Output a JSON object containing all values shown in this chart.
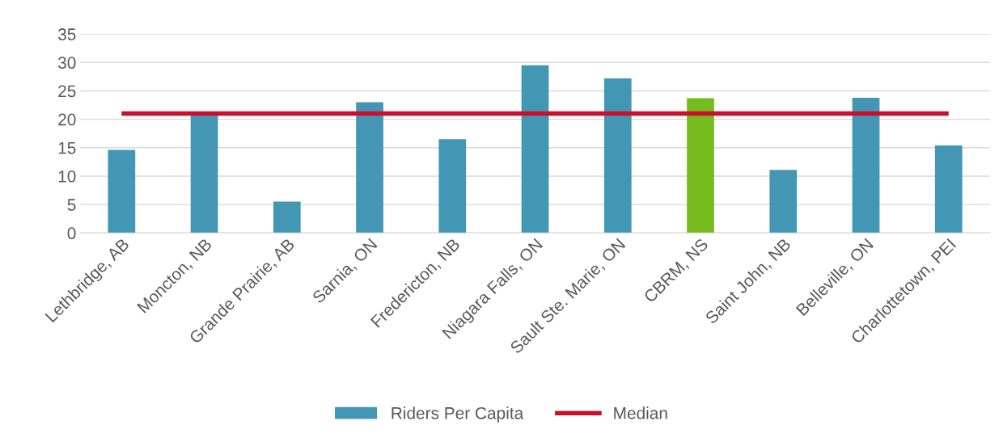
{
  "chart_data": {
    "type": "bar",
    "categories": [
      "Lethbridge, AB",
      "Moncton, NB",
      "Grande Prairie, AB",
      "Sarnia, ON",
      "Fredericton, NB",
      "Niagara Falls, ON",
      "Sault Ste. Marie, ON",
      "CBRM, NS",
      "Saint John, NB",
      "Belleville, ON",
      "Charlottetown, PEI"
    ],
    "series": [
      {
        "name": "Riders Per Capita",
        "color": "#4397b5",
        "colors": [
          "#4397b5",
          "#4397b5",
          "#4397b5",
          "#4397b5",
          "#4397b5",
          "#4397b5",
          "#4397b5",
          "#77bc1f",
          "#4397b5",
          "#4397b5",
          "#4397b5"
        ],
        "values": [
          14.6,
          21,
          5.5,
          23,
          16.5,
          29.5,
          27.2,
          23.7,
          11.1,
          23.8,
          15.4
        ]
      },
      {
        "name": "Median",
        "type": "line",
        "color": "#c8102e",
        "values": [
          21,
          21,
          21,
          21,
          21,
          21,
          21,
          21,
          21,
          21,
          21
        ]
      }
    ],
    "ylim": [
      0,
      35
    ],
    "yticks": [
      0,
      5,
      10,
      15,
      20,
      25,
      30,
      35
    ],
    "grid": "y",
    "legend": "bottom"
  }
}
